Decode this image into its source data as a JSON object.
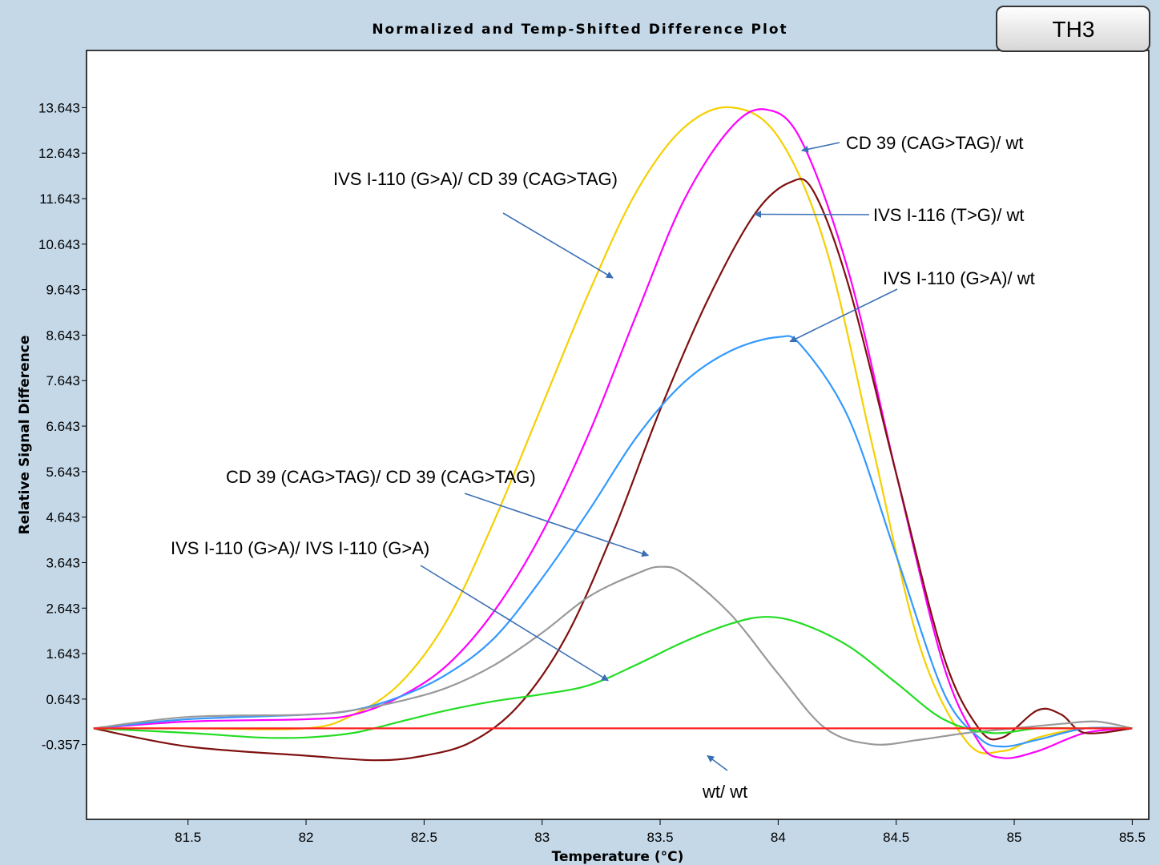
{
  "badge": {
    "label": "TH3"
  },
  "chart_data": {
    "type": "line",
    "title": "Normalized and Temp-Shifted Difference Plot",
    "xlabel": "Temperature (°C)",
    "ylabel": "Relative Signal Difference",
    "xlim": [
      81.07,
      85.57
    ],
    "ylim": [
      -2.0,
      14.9
    ],
    "xticks": [
      81.5,
      82,
      82.5,
      83,
      83.5,
      84,
      84.5,
      85,
      85.5
    ],
    "xtick_labels": [
      "81.5",
      "82",
      "82.5",
      "83",
      "83.5",
      "84",
      "84.5",
      "85",
      "85.5"
    ],
    "yticks": [
      -0.357,
      0.643,
      1.643,
      2.643,
      3.643,
      4.643,
      5.643,
      6.643,
      7.643,
      8.643,
      9.643,
      10.643,
      11.643,
      12.643,
      13.643
    ],
    "ytick_labels": [
      "-0.357",
      "0.643",
      "1.643",
      "2.643",
      "3.643",
      "4.643",
      "5.643",
      "6.643",
      "7.643",
      "8.643",
      "9.643",
      "10.643",
      "11.643",
      "12.643",
      "13.643"
    ],
    "grid": false,
    "series": [
      {
        "color": "#f5d000",
        "x": [
          81.1,
          81.5,
          82,
          82.2,
          82.4,
          82.6,
          82.8,
          83,
          83.2,
          83.4,
          83.6,
          83.8,
          84,
          84.2,
          84.4,
          84.6,
          84.8,
          84.95,
          85.1,
          85.3,
          85.5
        ],
        "y": [
          0,
          0,
          0,
          0.3,
          1.0,
          2.4,
          4.6,
          7.1,
          9.6,
          11.8,
          13.2,
          13.65,
          13.0,
          10.6,
          6.2,
          1.8,
          -0.3,
          -0.5,
          -0.2,
          0,
          0
        ]
      },
      {
        "color": "#ff00ff",
        "x": [
          81.1,
          81.5,
          82,
          82.2,
          82.4,
          82.6,
          82.8,
          83,
          83.2,
          83.4,
          83.6,
          83.8,
          83.95,
          84.1,
          84.3,
          84.5,
          84.7,
          84.85,
          84.95,
          85.1,
          85.3,
          85.5
        ],
        "y": [
          0,
          0.15,
          0.2,
          0.3,
          0.7,
          1.4,
          2.6,
          4.3,
          6.5,
          9.1,
          11.6,
          13.2,
          13.6,
          12.9,
          10.0,
          5.6,
          1.4,
          -0.3,
          -0.65,
          -0.5,
          -0.1,
          0
        ]
      },
      {
        "color": "#7f1010",
        "x": [
          81.1,
          81.5,
          82,
          82.3,
          82.5,
          82.7,
          82.9,
          83.1,
          83.3,
          83.5,
          83.7,
          83.9,
          84.05,
          84.15,
          84.3,
          84.5,
          84.7,
          84.85,
          84.95,
          85.1,
          85.2,
          85.3,
          85.5
        ],
        "y": [
          0,
          -0.4,
          -0.6,
          -0.7,
          -0.6,
          -0.3,
          0.5,
          2.0,
          4.3,
          7.0,
          9.4,
          11.3,
          12.0,
          11.8,
          9.7,
          5.6,
          1.6,
          0,
          -0.2,
          0.4,
          0.3,
          -0.1,
          0
        ]
      },
      {
        "color": "#3399ff",
        "x": [
          81.1,
          81.5,
          82,
          82.2,
          82.4,
          82.6,
          82.8,
          83,
          83.2,
          83.4,
          83.6,
          83.8,
          84,
          84.1,
          84.3,
          84.5,
          84.7,
          84.85,
          84.95,
          85.1,
          85.3,
          85.5
        ],
        "y": [
          0,
          0.2,
          0.3,
          0.4,
          0.7,
          1.2,
          2.0,
          3.3,
          4.8,
          6.4,
          7.6,
          8.3,
          8.6,
          8.4,
          6.8,
          3.8,
          0.8,
          -0.2,
          -0.4,
          -0.25,
          0,
          0
        ]
      },
      {
        "color": "#999999",
        "x": [
          81.1,
          81.5,
          82,
          82.2,
          82.4,
          82.6,
          82.8,
          83,
          83.2,
          83.4,
          83.5,
          83.6,
          83.8,
          84,
          84.2,
          84.4,
          84.6,
          84.8,
          85,
          85.2,
          85.35,
          85.5
        ],
        "y": [
          0,
          0.25,
          0.3,
          0.4,
          0.6,
          0.9,
          1.4,
          2.1,
          2.9,
          3.4,
          3.55,
          3.4,
          2.5,
          1.2,
          0.0,
          -0.35,
          -0.25,
          -0.1,
          0,
          0.1,
          0.15,
          0
        ]
      },
      {
        "color": "#22dd22",
        "x": [
          81.1,
          81.5,
          81.8,
          82,
          82.2,
          82.4,
          82.6,
          82.8,
          83,
          83.2,
          83.4,
          83.6,
          83.8,
          83.95,
          84.1,
          84.3,
          84.5,
          84.7,
          84.9,
          85.1,
          85.3,
          85.5
        ],
        "y": [
          0,
          -0.1,
          -0.2,
          -0.2,
          -0.1,
          0.15,
          0.4,
          0.6,
          0.75,
          0.95,
          1.4,
          1.9,
          2.3,
          2.45,
          2.3,
          1.8,
          1.0,
          0.2,
          -0.1,
          0,
          0,
          0
        ]
      },
      {
        "color": "#ff2020",
        "x": [
          81.1,
          85.5
        ],
        "y": [
          0,
          0
        ]
      }
    ],
    "annotations": [
      {
        "text": "CD 39 (CAG>TAG)/ wt",
        "arrow_to": [
          84.1,
          12.7
        ]
      },
      {
        "text": "IVS I-110 (G>A)/ CD 39 (CAG>TAG)",
        "arrow_to": [
          83.3,
          9.9
        ]
      },
      {
        "text": "IVS I-116 (T>G)/ wt",
        "arrow_to": [
          83.9,
          11.3
        ]
      },
      {
        "text": "IVS I-110 (G>A)/ wt",
        "arrow_to": [
          84.05,
          8.5
        ]
      },
      {
        "text": "CD 39 (CAG>TAG)/ CD 39 (CAG>TAG)",
        "arrow_to": [
          83.45,
          3.8
        ]
      },
      {
        "text": "IVS I-110 (G>A)/ IVS I-110 (G>A)",
        "arrow_to": [
          83.28,
          1.05
        ]
      },
      {
        "text": "wt/ wt",
        "arrow_to": [
          83.7,
          -0.6
        ]
      }
    ]
  }
}
